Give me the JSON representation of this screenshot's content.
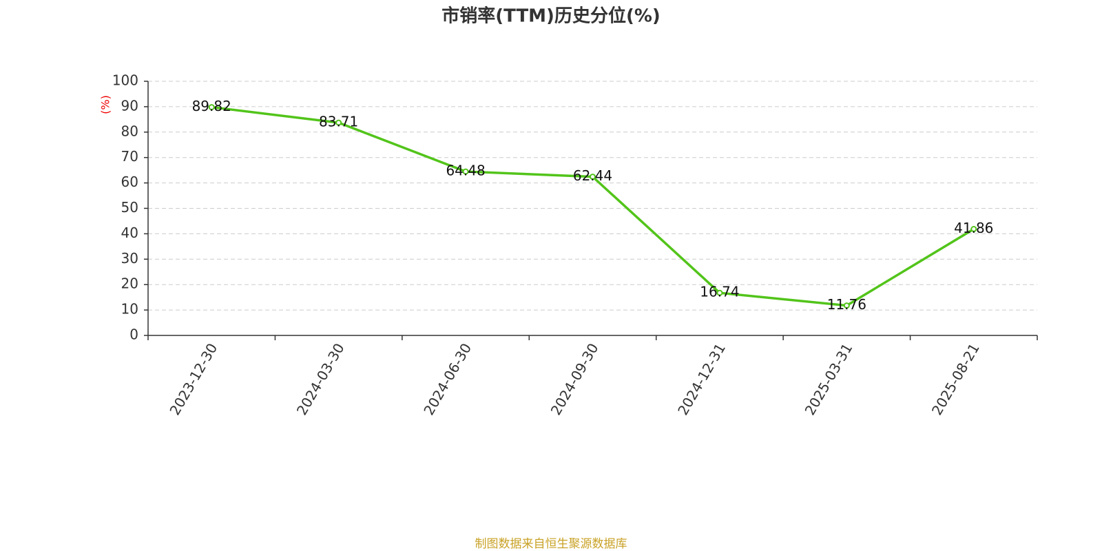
{
  "chart_data": {
    "type": "line",
    "title": "市销率(TTM)历史分位(%)",
    "y_label": "(%)",
    "source": "制图数据来自恒生聚源数据库",
    "categories": [
      "2023-12-30",
      "2024-03-30",
      "2024-06-30",
      "2024-09-30",
      "2024-12-31",
      "2025-03-31",
      "2025-08-21"
    ],
    "values": [
      89.82,
      83.71,
      64.48,
      62.44,
      16.74,
      11.76,
      41.86
    ],
    "color": "#52c41a",
    "ylim": [
      0,
      100
    ],
    "yticks": [
      0,
      10,
      20,
      30,
      40,
      50,
      60,
      70,
      80,
      90,
      100
    ],
    "grid": true
  }
}
